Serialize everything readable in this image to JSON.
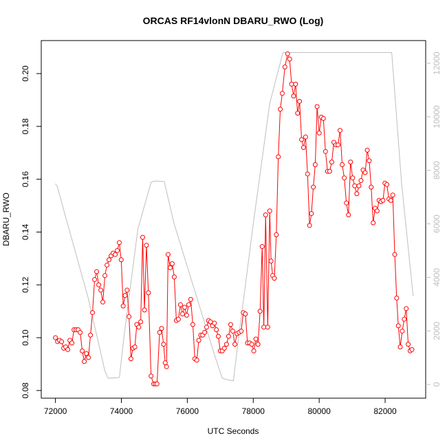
{
  "chart_data": {
    "type": "line",
    "title": "ORCAS RF14vlonN DBARU_RWO (Log)",
    "x_label": "UTC Seconds",
    "y_label": "DBARU_RWO",
    "xlim": [
      71570,
      83230
    ],
    "ylim": [
      0.0771,
      0.2125
    ],
    "y2lim": [
      -514,
      12848
    ],
    "xticks": [
      72000,
      74000,
      76000,
      78000,
      80000,
      82000
    ],
    "yticks": [
      0.08,
      {
        "value": 0.1,
        "label": "0.10"
      },
      0.12,
      0.14,
      0.16,
      0.18,
      {
        "value": 0.2,
        "label": "0.20"
      }
    ],
    "y2ticks": [
      0,
      2000,
      4000,
      6000,
      8000,
      10000,
      12000
    ],
    "series": [
      {
        "color": "#bebebe",
        "axis": "y2",
        "markers": false,
        "x": [
          72000,
          72060,
          72300,
          73000,
          73500,
          73600,
          73940,
          74100,
          74500,
          74900,
          75000,
          75300,
          75600,
          76200,
          76800,
          77060,
          77300,
          77400,
          77500,
          78000,
          78500,
          78900,
          82200,
          82500,
          82850
        ],
        "values": [
          7500,
          7380,
          6300,
          3200,
          500,
          230,
          260,
          2000,
          5800,
          7550,
          7600,
          7580,
          6000,
          3600,
          1200,
          230,
          150,
          140,
          1200,
          6000,
          10500,
          12400,
          12400,
          7500,
          3300
        ]
      },
      {
        "color": "#ff0000",
        "markers": true,
        "x": [
          72000,
          72063,
          72125,
          72188,
          72250,
          72313,
          72375,
          72438,
          72500,
          72563,
          72625,
          72688,
          72750,
          72813,
          72875,
          72938,
          73000,
          73063,
          73125,
          73188,
          73250,
          73313,
          73375,
          73438,
          73500,
          73563,
          73625,
          73688,
          73750,
          73813,
          73875,
          73937,
          73996,
          74055,
          74114,
          74173,
          74232,
          74291,
          74350,
          74409,
          74468,
          74527,
          74586,
          74646,
          74700,
          74760,
          74820,
          74900,
          74980,
          75030,
          75080,
          75160,
          75220,
          75280,
          75330,
          75370,
          75417,
          75479,
          75542,
          75604,
          75667,
          75729,
          75792,
          75854,
          75917,
          75979,
          76042,
          76104,
          76167,
          76229,
          76288,
          76348,
          76407,
          76466,
          76526,
          76585,
          76644,
          76704,
          76763,
          76822,
          76881,
          76941,
          77000,
          77060,
          77124,
          77188,
          77251,
          77315,
          77379,
          77443,
          77506,
          77570,
          77634,
          77698,
          77761,
          77825,
          77889,
          77953,
          78016,
          78080,
          78144,
          78207,
          78271,
          78320,
          78375,
          78440,
          78500,
          78540,
          78590,
          78640,
          78700,
          78760,
          78820,
          78880,
          78960,
          79042,
          79103,
          79163,
          79224,
          79284,
          79345,
          79405,
          79466,
          79526,
          79587,
          79647,
          79708,
          79765,
          79822,
          79880,
          79937,
          80000,
          80064,
          80127,
          80191,
          80254,
          80317,
          80381,
          80444,
          80508,
          80571,
          80634,
          80698,
          80761,
          80825,
          80888,
          80951,
          81015,
          81078,
          81141,
          81205,
          81268,
          81331,
          81395,
          81458,
          81518,
          81577,
          81637,
          81696,
          81756,
          81816,
          81875,
          81935,
          81994,
          82054,
          82113,
          82173,
          82232,
          82292,
          82350,
          82400,
          82458,
          82520,
          82580,
          82640,
          82700,
          82760,
          82812
        ],
        "values": [
          0.1,
          0.0985,
          0.099,
          0.0985,
          0.096,
          0.0965,
          0.0955,
          0.099,
          0.098,
          0.103,
          0.103,
          0.103,
          0.102,
          0.095,
          0.091,
          0.094,
          0.0925,
          0.101,
          0.1095,
          0.122,
          0.125,
          0.12,
          0.118,
          0.1135,
          0.1235,
          0.1275,
          0.1295,
          0.131,
          0.132,
          0.1315,
          0.133,
          0.136,
          0.1295,
          0.112,
          0.116,
          0.118,
          0.108,
          0.092,
          0.096,
          0.0965,
          0.105,
          0.104,
          0.106,
          0.138,
          0.1105,
          0.135,
          0.117,
          0.0855,
          0.0825,
          0.0825,
          0.0825,
          0.102,
          0.1035,
          0.0975,
          0.0905,
          0.089,
          0.1315,
          0.1265,
          0.128,
          0.123,
          0.1065,
          0.107,
          0.1125,
          0.109,
          0.1115,
          0.1085,
          0.1125,
          0.1145,
          0.105,
          0.092,
          0.0915,
          0.099,
          0.101,
          0.101,
          0.102,
          0.104,
          0.1065,
          0.106,
          0.1045,
          0.1055,
          0.103,
          0.1005,
          0.095,
          0.095,
          0.096,
          0.0975,
          0.1005,
          0.105,
          0.1025,
          0.0975,
          0.1015,
          0.102,
          0.1025,
          0.1095,
          0.109,
          0.098,
          0.098,
          0.0975,
          0.095,
          0.0995,
          0.0975,
          0.11,
          0.1345,
          0.104,
          0.1465,
          0.104,
          0.148,
          0.129,
          0.1235,
          0.1225,
          0.139,
          0.1685,
          0.1865,
          0.1925,
          0.2025,
          0.2075,
          0.2055,
          0.196,
          0.1915,
          0.196,
          0.185,
          0.1895,
          0.175,
          0.172,
          0.176,
          0.162,
          0.1425,
          0.147,
          0.157,
          0.1655,
          0.1875,
          0.1775,
          0.1835,
          0.183,
          0.1705,
          0.163,
          0.163,
          0.1665,
          0.174,
          0.173,
          0.173,
          0.1785,
          0.1655,
          0.1605,
          0.151,
          0.1465,
          0.1665,
          0.1605,
          0.1575,
          0.1545,
          0.1575,
          0.1595,
          0.1635,
          0.1625,
          0.171,
          0.167,
          0.157,
          0.1435,
          0.149,
          0.148,
          0.152,
          0.1515,
          0.152,
          0.1585,
          0.158,
          0.1525,
          0.152,
          0.154,
          0.1315,
          0.115,
          0.1045,
          0.0965,
          0.1025,
          0.107,
          0.111,
          0.0975,
          0.095,
          0.0955
        ]
      }
    ]
  }
}
